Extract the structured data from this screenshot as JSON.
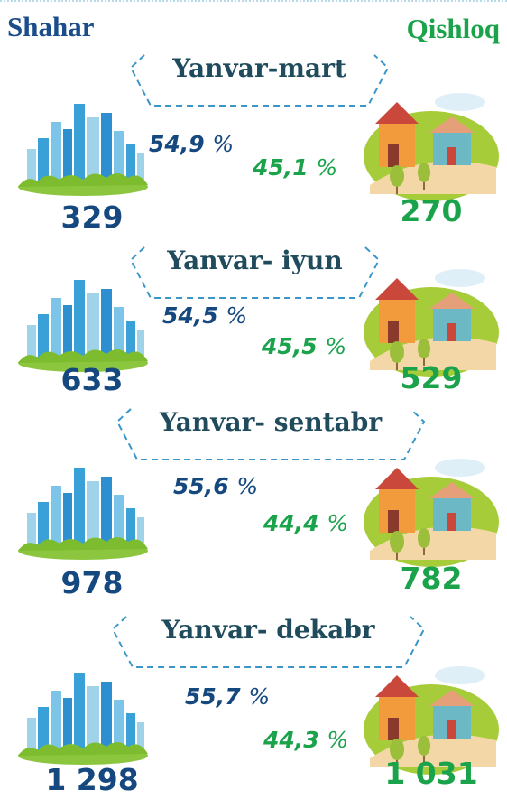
{
  "header": {
    "left": "Shahar",
    "right": "Qishloq"
  },
  "percent_sign": "%",
  "periods": [
    {
      "label": "Yanvar-mart",
      "city_share": "54,9",
      "rural_share": "45,1",
      "city_count": "329",
      "rural_count": "270"
    },
    {
      "label": "Yanvar- iyun",
      "city_share": "54,5",
      "rural_share": "45,5",
      "city_count": "633",
      "rural_count": "529"
    },
    {
      "label": "Yanvar- sentabr",
      "city_share": "55,6",
      "rural_share": "44,4",
      "city_count": "978",
      "rural_count": "782"
    },
    {
      "label": "Yanvar- dekabr",
      "city_share": "55,7",
      "rural_share": "44,3",
      "city_count": "1 298",
      "rural_count": "1 031"
    }
  ]
}
